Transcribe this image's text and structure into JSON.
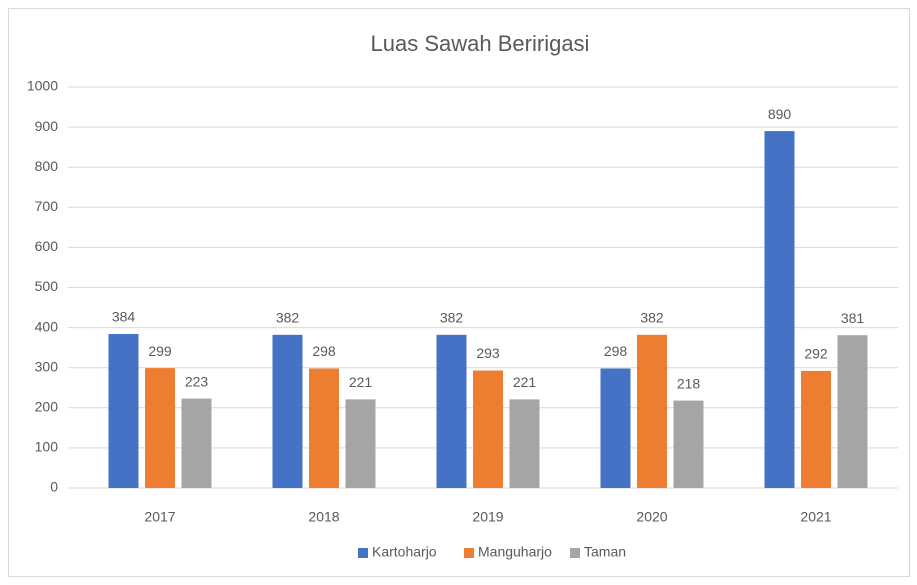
{
  "chart_data": {
    "type": "bar",
    "title": "Luas Sawah Beririgasi",
    "categories": [
      "2017",
      "2018",
      "2019",
      "2020",
      "2021"
    ],
    "series": [
      {
        "name": "Kartoharjo",
        "color": "#4472c4",
        "values": [
          384,
          382,
          382,
          298,
          890
        ]
      },
      {
        "name": "Manguharjo",
        "color": "#ed7d31",
        "values": [
          299,
          298,
          293,
          382,
          292
        ]
      },
      {
        "name": "Taman",
        "color": "#a5a5a5",
        "values": [
          223,
          221,
          221,
          218,
          381
        ]
      }
    ],
    "ylim": [
      0,
      1000
    ],
    "yticks": [
      0,
      100,
      200,
      300,
      400,
      500,
      600,
      700,
      800,
      900,
      1000
    ],
    "grid": true,
    "legend": "bottom"
  }
}
